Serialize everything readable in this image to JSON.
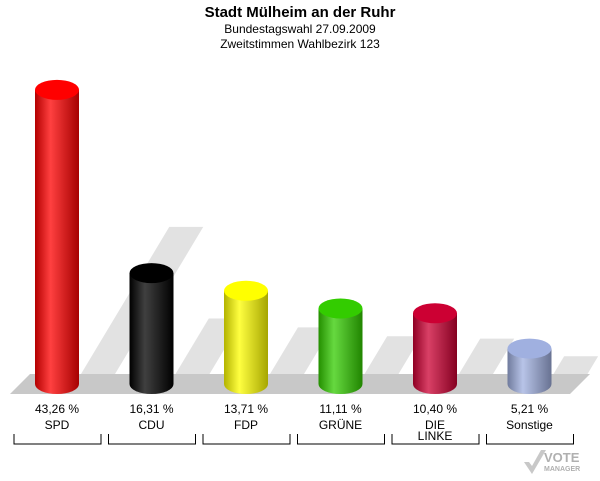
{
  "title": "Stadt Mülheim an der Ruhr",
  "subtitle1": "Bundestagswahl 27.09.2009",
  "subtitle2": "Zweitstimmen Wahlbezirk 123",
  "logo": {
    "line1": "VOTE",
    "line2": "MANAGER"
  },
  "chart_data": {
    "type": "bar",
    "categories": [
      "SPD",
      "CDU",
      "FDP",
      "GRÜNE",
      "DIE LINKE",
      "Sonstige"
    ],
    "category_lines": [
      [
        "SPD"
      ],
      [
        "CDU"
      ],
      [
        "FDP"
      ],
      [
        "GRÜNE"
      ],
      [
        "DIE",
        "LINKE"
      ],
      [
        "Sonstige"
      ]
    ],
    "values": [
      43.26,
      16.31,
      13.71,
      11.11,
      10.4,
      5.21
    ],
    "value_labels": [
      "43,26 %",
      "16,31 %",
      "13,71 %",
      "11,11 %",
      "10,40 %",
      "5,21 %"
    ],
    "colors": [
      "#ff0000",
      "#000000",
      "#ffff00",
      "#33cc00",
      "#cc0033",
      "#a0b0e0"
    ],
    "ylim": [
      0,
      45
    ],
    "grid": false,
    "legend": "none"
  }
}
